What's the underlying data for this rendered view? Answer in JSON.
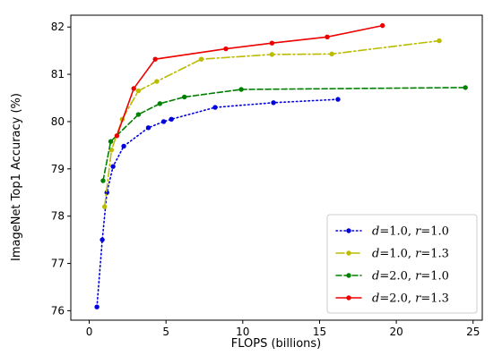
{
  "chart_data": {
    "type": "line",
    "xlabel": "FLOPS (billions)",
    "ylabel": "ImageNet Top1 Accuracy (%)",
    "xlim": [
      -1.2,
      25.6
    ],
    "ylim": [
      75.8,
      82.25
    ],
    "xticks": [
      0,
      5,
      10,
      15,
      20,
      25
    ],
    "yticks": [
      76,
      77,
      78,
      79,
      80,
      81,
      82
    ],
    "xtick_labels": [
      "0",
      "5",
      "10",
      "15",
      "20",
      "25"
    ],
    "ytick_labels": [
      "76",
      "77",
      "78",
      "79",
      "80",
      "81",
      "82"
    ],
    "grid": false,
    "legend_position": "lower-right",
    "series": [
      {
        "name": "d=1.0, r=1.0",
        "legend_d": "1.0",
        "legend_r": "1.0",
        "color": "#0000dd",
        "dash": "1.5,3",
        "x": [
          0.5,
          0.85,
          1.15,
          1.55,
          2.25,
          3.85,
          4.85,
          5.35,
          8.2,
          12.0,
          16.2
        ],
        "y": [
          76.08,
          77.5,
          78.5,
          79.05,
          79.48,
          79.87,
          80.0,
          80.05,
          80.3,
          80.4,
          80.47
        ]
      },
      {
        "name": "d=1.0, r=1.3",
        "legend_d": "1.0",
        "legend_r": "1.3",
        "color": "#bbbb00",
        "dash": "9,3,2,3",
        "x": [
          1.0,
          1.45,
          2.15,
          3.2,
          4.4,
          7.3,
          11.9,
          15.8,
          22.8
        ],
        "y": [
          78.2,
          79.4,
          80.05,
          80.65,
          80.85,
          81.32,
          81.42,
          81.43,
          81.71
        ]
      },
      {
        "name": "d=2.0, r=1.0",
        "legend_d": "2.0",
        "legend_r": "1.0",
        "color": "#008000",
        "dash": "6,3",
        "x": [
          0.9,
          1.4,
          3.2,
          4.6,
          6.2,
          9.9,
          24.5
        ],
        "y": [
          78.75,
          79.58,
          80.15,
          80.38,
          80.52,
          80.68,
          80.72
        ]
      },
      {
        "name": "d=2.0, r=1.3",
        "legend_d": "2.0",
        "legend_r": "1.3",
        "color": "#ee0000",
        "dash": "",
        "x": [
          1.8,
          2.9,
          4.3,
          8.9,
          11.9,
          15.5,
          19.1
        ],
        "y": [
          79.7,
          80.7,
          81.32,
          81.54,
          81.66,
          81.79,
          82.03
        ]
      }
    ]
  }
}
